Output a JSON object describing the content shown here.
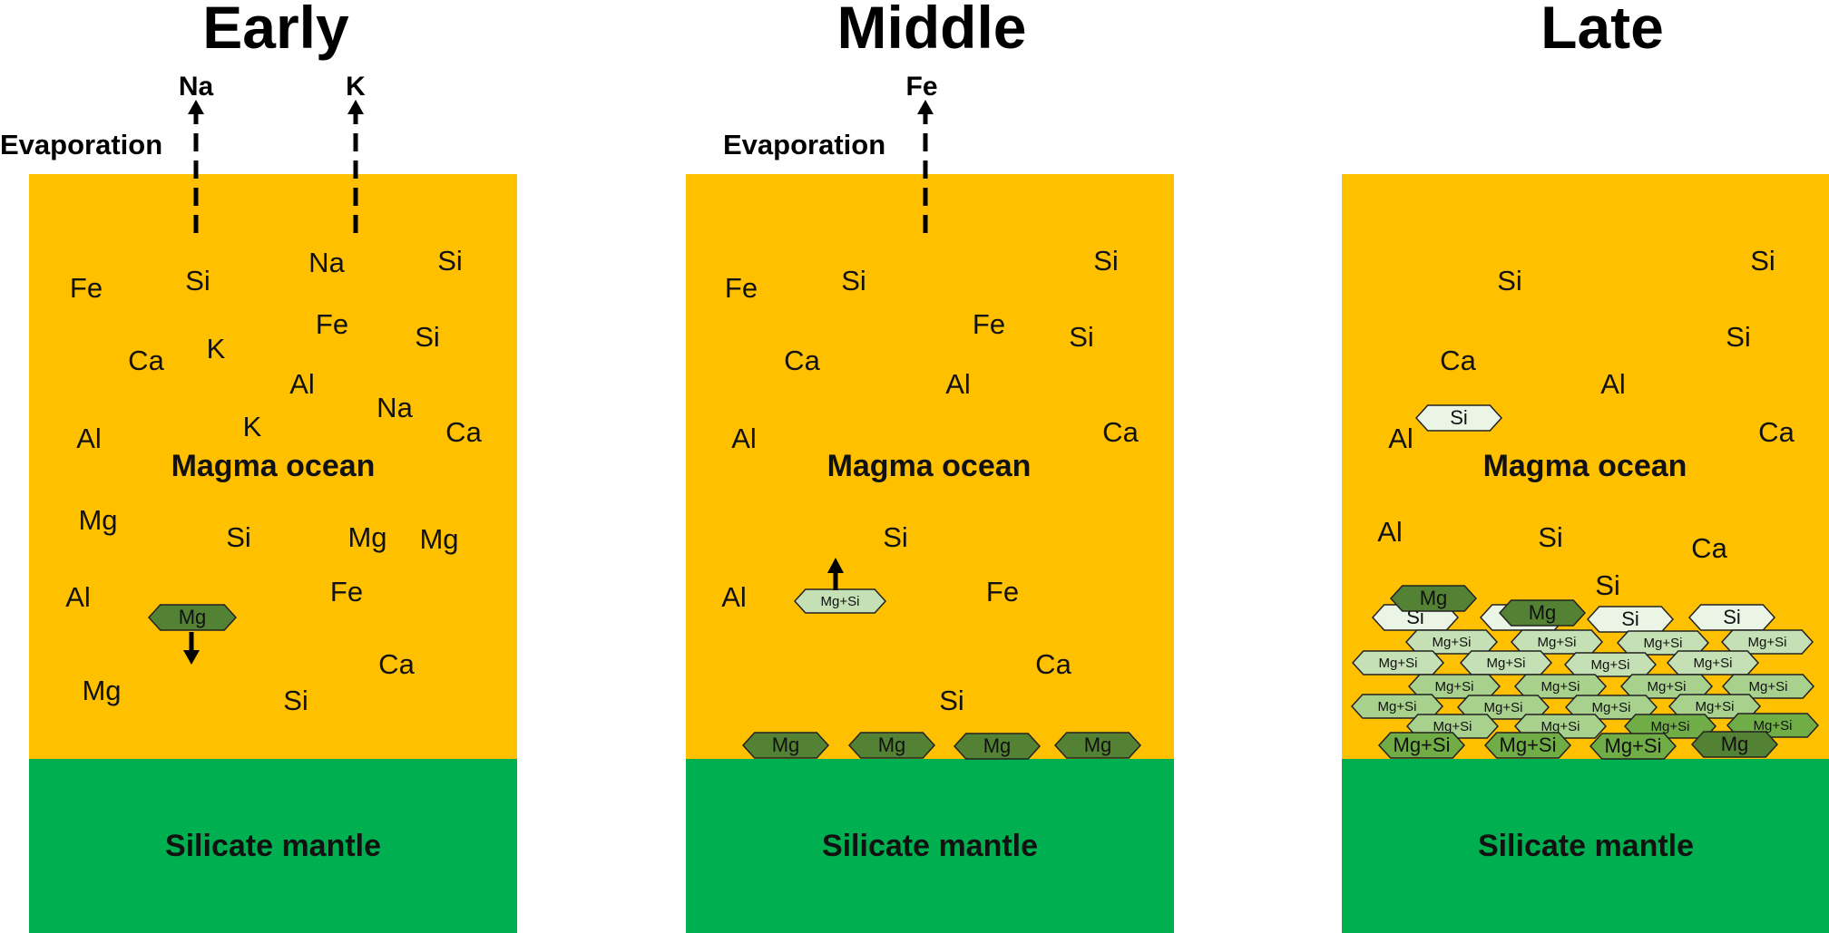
{
  "panels": [
    {
      "id": "early",
      "title": "Early",
      "evaporation_label": "Evaporation",
      "evaporating": [
        "Na",
        "K"
      ],
      "ocean_label": "Magma ocean",
      "mantle_label": "Silicate mantle",
      "elements": [
        "Fe",
        "Si",
        "Na",
        "Si",
        "Fe",
        "Si",
        "Ca",
        "K",
        "Al",
        "Na",
        "K",
        "Ca",
        "Al",
        "Mg",
        "Si",
        "Mg",
        "Mg",
        "Al",
        "Fe",
        "Ca",
        "Mg",
        "Si"
      ],
      "crystals": [
        {
          "label": "Mg",
          "type": "mg",
          "arrow": "down"
        }
      ]
    },
    {
      "id": "middle",
      "title": "Middle",
      "evaporation_label": "Evaporation",
      "evaporating": [
        "Fe"
      ],
      "ocean_label": "Magma ocean",
      "mantle_label": "Silicate mantle",
      "elements": [
        "Fe",
        "Si",
        "Si",
        "Fe",
        "Si",
        "Ca",
        "Al",
        "Al",
        "Ca",
        "Si",
        "Al",
        "Fe",
        "Ca",
        "Si"
      ],
      "crystals": [
        {
          "label": "Mg+Si",
          "type": "mgsi-light",
          "arrow": "up"
        },
        {
          "label": "Mg",
          "type": "mg"
        },
        {
          "label": "Mg",
          "type": "mg"
        },
        {
          "label": "Mg",
          "type": "mg"
        },
        {
          "label": "Mg",
          "type": "mg"
        }
      ]
    },
    {
      "id": "late",
      "title": "Late",
      "ocean_label": "Magma ocean",
      "mantle_label": "Silicate mantle",
      "elements": [
        "Si",
        "Si",
        "Ca",
        "Si",
        "Al",
        "Al",
        "Ca",
        "Al",
        "Si",
        "Ca",
        "Si"
      ],
      "crystals": [
        {
          "label": "Si",
          "type": "si"
        },
        {
          "label": "Si",
          "type": "si"
        },
        {
          "label": "Si",
          "type": "si"
        },
        {
          "label": "Si",
          "type": "si"
        },
        {
          "label": "Si",
          "type": "si"
        },
        {
          "label": "Mg+Si",
          "type": "mgsi-light"
        },
        {
          "label": "Mg+Si",
          "type": "mgsi-light"
        },
        {
          "label": "Mg+Si",
          "type": "mgsi-light"
        },
        {
          "label": "Mg+Si",
          "type": "mgsi-light"
        },
        {
          "label": "Mg+Si",
          "type": "mgsi-light"
        },
        {
          "label": "Mg+Si",
          "type": "mgsi-light"
        },
        {
          "label": "Mg+Si",
          "type": "mgsi-light"
        },
        {
          "label": "Mg+Si",
          "type": "mgsi-light"
        },
        {
          "label": "Mg+Si",
          "type": "mgsi-mid"
        },
        {
          "label": "Mg+Si",
          "type": "mgsi-mid"
        },
        {
          "label": "Mg+Si",
          "type": "mgsi-mid"
        },
        {
          "label": "Mg+Si",
          "type": "mgsi-mid"
        },
        {
          "label": "Mg+Si",
          "type": "mgsi-mid"
        },
        {
          "label": "Mg+Si",
          "type": "mgsi-mid"
        },
        {
          "label": "Mg+Si",
          "type": "mgsi-mid"
        },
        {
          "label": "Mg+Si",
          "type": "mgsi-mid"
        },
        {
          "label": "Mg+Si",
          "type": "mgsi-mid"
        },
        {
          "label": "Mg+Si",
          "type": "mgsi-mid"
        },
        {
          "label": "Mg+Si",
          "type": "mgsi-dark"
        },
        {
          "label": "Mg+Si",
          "type": "mgsi-dark"
        },
        {
          "label": "Mg+Si",
          "type": "mgsi-dark"
        },
        {
          "label": "Mg+Si",
          "type": "mgsi-dark"
        },
        {
          "label": "Mg+Si",
          "type": "mgsi-dark"
        },
        {
          "label": "Mg",
          "type": "mg"
        },
        {
          "label": "Mg",
          "type": "mg"
        },
        {
          "label": "Mg",
          "type": "mg"
        },
        {
          "label": "Mg",
          "type": "mg"
        }
      ]
    }
  ],
  "colors": {
    "magma": "#FFC000",
    "mantle": "#00B050",
    "mg": "#548235",
    "si": "#EBF5E6",
    "mgsi-light": "#C5E0B4",
    "mgsi-mid": "#A9D18E",
    "mgsi-dark": "#70AD47"
  }
}
